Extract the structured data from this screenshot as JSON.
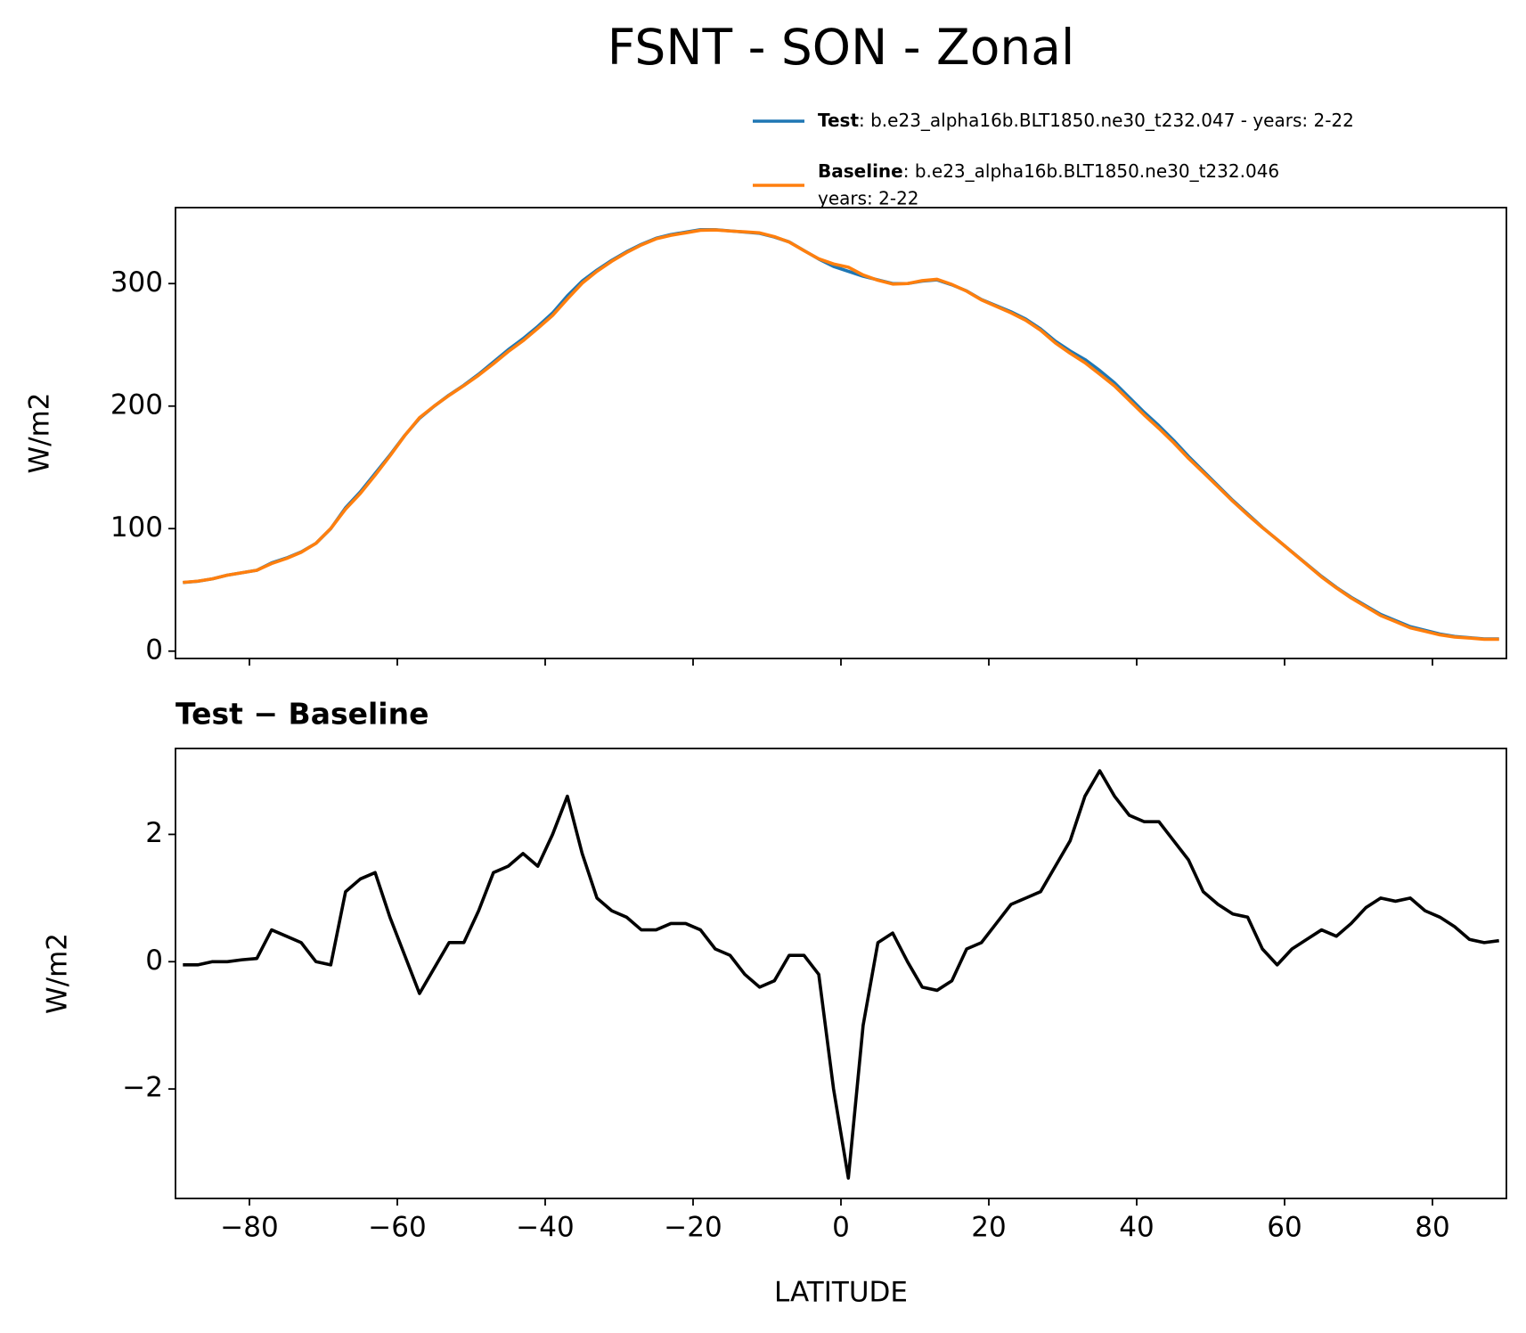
{
  "title": "FSNT - SON - Zonal",
  "chart_data": [
    {
      "type": "line",
      "ylabel": "W/m2",
      "xlim": [
        -90,
        90
      ],
      "ylim": [
        -6,
        362
      ],
      "xticks": [
        -80,
        -60,
        -40,
        -20,
        0,
        20,
        40,
        60,
        80
      ],
      "yticks": [
        0,
        100,
        200,
        300
      ],
      "x": [
        -89,
        -87,
        -85,
        -83,
        -81,
        -79,
        -77,
        -75,
        -73,
        -71,
        -69,
        -67,
        -65,
        -63,
        -61,
        -59,
        -57,
        -55,
        -53,
        -51,
        -49,
        -47,
        -45,
        -43,
        -41,
        -39,
        -37,
        -35,
        -33,
        -31,
        -29,
        -27,
        -25,
        -23,
        -21,
        -19,
        -17,
        -15,
        -13,
        -11,
        -9,
        -7,
        -5,
        -3,
        -1,
        1,
        3,
        5,
        7,
        9,
        11,
        13,
        15,
        17,
        19,
        21,
        23,
        25,
        27,
        29,
        31,
        33,
        35,
        37,
        39,
        41,
        43,
        45,
        47,
        49,
        51,
        53,
        55,
        57,
        59,
        61,
        63,
        65,
        67,
        69,
        71,
        73,
        75,
        77,
        79,
        81,
        83,
        85,
        87,
        89
      ],
      "series": [
        {
          "name": "Test",
          "description": [
            ": b.e23_alpha16b.BLT1850.ne30_t232.047 - years: 2-22"
          ],
          "color": "#1f77b4",
          "values": [
            56,
            57,
            59,
            62,
            64,
            66,
            72,
            76,
            81,
            88,
            100,
            117,
            130,
            145,
            160,
            176,
            190,
            200,
            209,
            217,
            226,
            236,
            246,
            255,
            265,
            276,
            290,
            302,
            311,
            319,
            326,
            332,
            337,
            340,
            342,
            344,
            344,
            343,
            342,
            341,
            338,
            334,
            327,
            320,
            314,
            310,
            306,
            303,
            300,
            300,
            302,
            303,
            299,
            294,
            287,
            282,
            277,
            271,
            263,
            253,
            245,
            238,
            229,
            219,
            207,
            195,
            184,
            172,
            159,
            147,
            135,
            123,
            112,
            101,
            91,
            81,
            71,
            61,
            52,
            44,
            37,
            30,
            25,
            20,
            17,
            14,
            12,
            11,
            10,
            10
          ]
        },
        {
          "name": "Baseline",
          "description": [
            ": b.e23_alpha16b.BLT1850.ne30_t232.046",
            "years: 2-22"
          ],
          "color": "#ff7f0e",
          "values": [
            56.1,
            57.1,
            59,
            62,
            64,
            66,
            71.5,
            75.6,
            80.7,
            88,
            100.1,
            115.9,
            128.7,
            143.6,
            159.3,
            175.9,
            190.5,
            200.1,
            208.7,
            216.7,
            225.2,
            234.6,
            244.5,
            253.3,
            263.5,
            274,
            287.4,
            300.3,
            310,
            318.2,
            325.3,
            331.5,
            336.5,
            339.4,
            341.4,
            343.5,
            343.8,
            342.9,
            342.2,
            341.4,
            338.3,
            333.9,
            326.9,
            320.2,
            316,
            313.4,
            307,
            302.7,
            299.6,
            300,
            302.4,
            303.5,
            299.3,
            293.8,
            286.7,
            281.4,
            276.1,
            270,
            261.9,
            251.5,
            243.1,
            235.4,
            226,
            216.4,
            204.7,
            192.8,
            181.8,
            170.1,
            157.4,
            145.9,
            134.1,
            122.3,
            111.3,
            100.8,
            91.1,
            80.8,
            70.7,
            60.5,
            51.6,
            43.4,
            36.2,
            29,
            24.1,
            19,
            16.2,
            13.3,
            11.5,
            10.7,
            9.7,
            9.7
          ]
        }
      ]
    },
    {
      "type": "line",
      "title": "Test − Baseline",
      "ylabel": "W/m2",
      "xlabel": "LATITUDE",
      "xlim": [
        -90,
        90
      ],
      "ylim": [
        -3.72,
        3.35
      ],
      "xticks": [
        {
          "value": -80,
          "label": "−80"
        },
        {
          "value": -60,
          "label": "−60"
        },
        {
          "value": -40,
          "label": "−40"
        },
        {
          "value": -20,
          "label": "−20"
        },
        0,
        20,
        40,
        60,
        80
      ],
      "yticks": [
        {
          "value": -2,
          "label": "−2"
        },
        0,
        2
      ],
      "x": [
        -89,
        -87,
        -85,
        -83,
        -81,
        -79,
        -77,
        -75,
        -73,
        -71,
        -69,
        -67,
        -65,
        -63,
        -61,
        -59,
        -57,
        -55,
        -53,
        -51,
        -49,
        -47,
        -45,
        -43,
        -41,
        -39,
        -37,
        -35,
        -33,
        -31,
        -29,
        -27,
        -25,
        -23,
        -21,
        -19,
        -17,
        -15,
        -13,
        -11,
        -9,
        -7,
        -5,
        -3,
        -1,
        1,
        3,
        5,
        7,
        9,
        11,
        13,
        15,
        17,
        19,
        21,
        23,
        25,
        27,
        29,
        31,
        33,
        35,
        37,
        39,
        41,
        43,
        45,
        47,
        49,
        51,
        53,
        55,
        57,
        59,
        61,
        63,
        65,
        67,
        69,
        71,
        73,
        75,
        77,
        79,
        81,
        83,
        85,
        87,
        89
      ],
      "series": [
        {
          "color": "#000000",
          "values": [
            -0.05,
            -0.05,
            0,
            0,
            0.03,
            0.05,
            0.5,
            0.4,
            0.3,
            0,
            -0.05,
            1.1,
            1.3,
            1.4,
            0.7,
            0.1,
            -0.5,
            -0.1,
            0.3,
            0.3,
            0.8,
            1.4,
            1.5,
            1.7,
            1.5,
            2,
            2.6,
            1.7,
            1,
            0.8,
            0.7,
            0.5,
            0.5,
            0.6,
            0.6,
            0.5,
            0.2,
            0.1,
            -0.2,
            -0.4,
            -0.3,
            0.1,
            0.1,
            -0.2,
            -2,
            -3.4,
            -1,
            0.3,
            0.45,
            0,
            -0.4,
            -0.45,
            -0.3,
            0.2,
            0.3,
            0.6,
            0.9,
            1,
            1.1,
            1.5,
            1.9,
            2.6,
            3,
            2.6,
            2.3,
            2.2,
            2.2,
            1.9,
            1.6,
            1.1,
            0.9,
            0.75,
            0.7,
            0.2,
            -0.05,
            0.2,
            0.35,
            0.5,
            0.4,
            0.6,
            0.85,
            1,
            0.95,
            1,
            0.8,
            0.7,
            0.55,
            0.35,
            0.3,
            0.33
          ]
        }
      ]
    }
  ]
}
